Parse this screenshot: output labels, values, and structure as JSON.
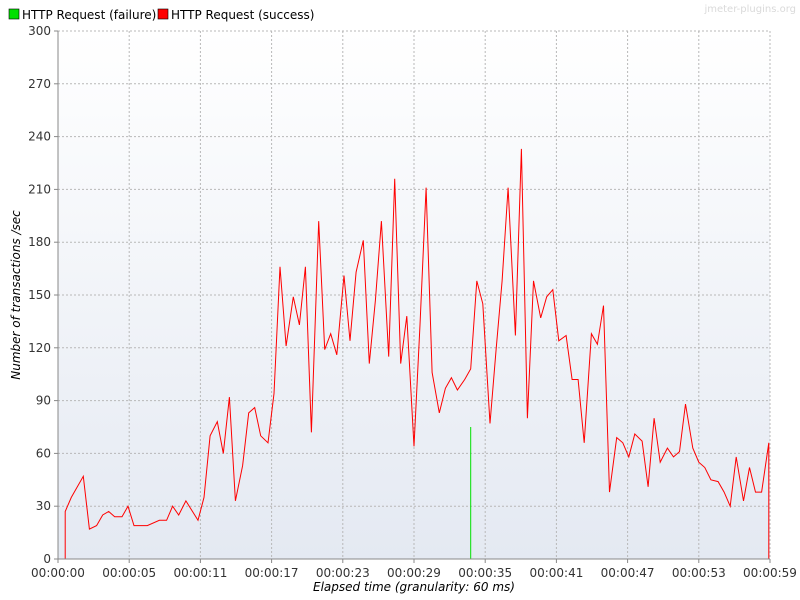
{
  "watermark": "jmeter-plugins.org",
  "chart_data": {
    "type": "line",
    "title": "",
    "xlabel": "Elapsed time (granularity: 60 ms)",
    "ylabel": "Number of transactions /sec",
    "ylim": [
      0,
      300
    ],
    "xlim_seconds": [
      0,
      59
    ],
    "yticks": [
      0,
      30,
      60,
      90,
      120,
      150,
      180,
      210,
      240,
      270,
      300
    ],
    "xticks": [
      {
        "t": 0,
        "label": "00:00:00"
      },
      {
        "t": 5.9,
        "label": "00:00:05"
      },
      {
        "t": 11.8,
        "label": "00:00:11"
      },
      {
        "t": 17.7,
        "label": "00:00:17"
      },
      {
        "t": 23.6,
        "label": "00:00:23"
      },
      {
        "t": 29.5,
        "label": "00:00:29"
      },
      {
        "t": 35.4,
        "label": "00:00:35"
      },
      {
        "t": 41.3,
        "label": "00:00:41"
      },
      {
        "t": 47.2,
        "label": "00:00:47"
      },
      {
        "t": 53.1,
        "label": "00:00:53"
      },
      {
        "t": 59,
        "label": "00:00:59"
      }
    ],
    "grid": true,
    "legend_position": "top-left",
    "series": [
      {
        "name": "HTTP Request (failure)",
        "color": "#00e000",
        "x": [
          34.2,
          34.2
        ],
        "y": [
          0,
          75
        ]
      },
      {
        "name": "HTTP Request (success)",
        "color": "#ff0000",
        "x": [
          0.6,
          0.6,
          1.1,
          2.1,
          2.6,
          3.2,
          3.7,
          4.2,
          4.7,
          5.3,
          5.8,
          6.3,
          7.4,
          8.4,
          9.0,
          9.5,
          10.0,
          10.6,
          11.6,
          12.1,
          12.6,
          13.2,
          13.7,
          14.2,
          14.7,
          15.3,
          15.8,
          16.3,
          16.8,
          17.4,
          17.9,
          18.4,
          18.9,
          19.5,
          20.0,
          20.5,
          21.0,
          21.6,
          22.1,
          22.6,
          23.1,
          23.7,
          24.2,
          24.7,
          25.3,
          25.8,
          26.3,
          26.8,
          27.4,
          27.9,
          28.4,
          28.9,
          29.5,
          30.0,
          30.5,
          31.0,
          31.6,
          32.1,
          32.6,
          33.1,
          33.7,
          34.2,
          34.7,
          35.2,
          35.8,
          36.3,
          36.8,
          37.3,
          37.9,
          38.4,
          38.9,
          39.4,
          40.0,
          40.5,
          41.0,
          41.5,
          42.1,
          42.6,
          43.1,
          43.6,
          44.2,
          44.7,
          45.2,
          45.7,
          46.3,
          46.8,
          47.3,
          47.8,
          48.4,
          48.9,
          49.4,
          49.9,
          50.5,
          51.0,
          51.5,
          52.0,
          52.6,
          53.1,
          53.6,
          54.1,
          54.7,
          55.2,
          55.7,
          56.2,
          56.8,
          57.3,
          57.8,
          58.3,
          58.9,
          58.9
        ],
        "y": [
          0,
          27,
          35,
          47,
          17,
          19,
          25,
          27,
          24,
          24,
          30,
          19,
          19,
          22,
          22,
          30,
          25,
          33,
          22,
          35,
          70,
          78,
          60,
          92,
          33,
          53,
          83,
          86,
          70,
          66,
          94,
          166,
          121,
          149,
          133,
          166,
          72,
          192,
          119,
          128,
          116,
          161,
          124,
          163,
          181,
          111,
          147,
          192,
          115,
          216,
          111,
          138,
          64,
          133,
          211,
          106,
          83,
          97,
          103,
          96,
          102,
          108,
          158,
          145,
          77,
          119,
          158,
          211,
          127,
          233,
          80,
          158,
          137,
          149,
          153,
          124,
          127,
          102,
          102,
          66,
          128,
          122,
          144,
          38,
          69,
          66,
          58,
          71,
          67,
          41,
          80,
          55,
          63,
          58,
          61,
          88,
          63,
          55,
          52,
          45,
          44,
          38,
          30,
          58,
          33,
          52,
          38,
          38,
          66,
          0
        ]
      }
    ]
  }
}
